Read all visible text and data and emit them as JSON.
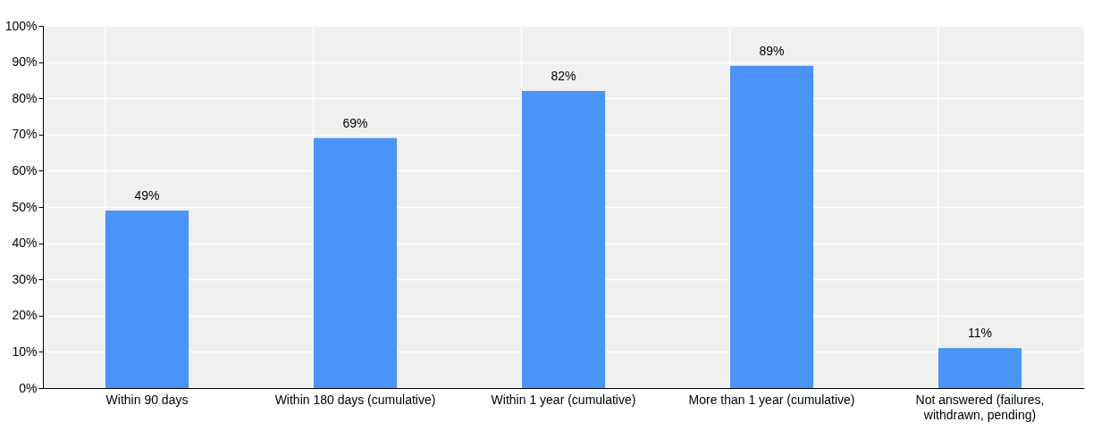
{
  "chart_data": {
    "type": "bar",
    "categories": [
      "Within 90 days",
      "Within 180 days (cumulative)",
      "Within 1 year (cumulative)",
      "More than 1 year (cumulative)",
      "Not answered (failures, withdrawn, pending)"
    ],
    "values": [
      49,
      69,
      82,
      89,
      11
    ],
    "color": "#4a93f7",
    "ylim": [
      0,
      100
    ],
    "yticks": [
      {
        "value": 0,
        "label": "0%"
      },
      {
        "value": 10,
        "label": "10%"
      },
      {
        "value": 20,
        "label": "20%"
      },
      {
        "value": 30,
        "label": "30%"
      },
      {
        "value": 40,
        "label": "40%"
      },
      {
        "value": 50,
        "label": "50%"
      },
      {
        "value": 60,
        "label": "60%"
      },
      {
        "value": 70,
        "label": "70%"
      },
      {
        "value": 80,
        "label": "80%"
      },
      {
        "value": 90,
        "label": "90%"
      },
      {
        "value": 100,
        "label": "100%"
      }
    ],
    "value_labels": [
      "49%",
      "69%",
      "82%",
      "89%",
      "11%"
    ],
    "grid": true
  }
}
